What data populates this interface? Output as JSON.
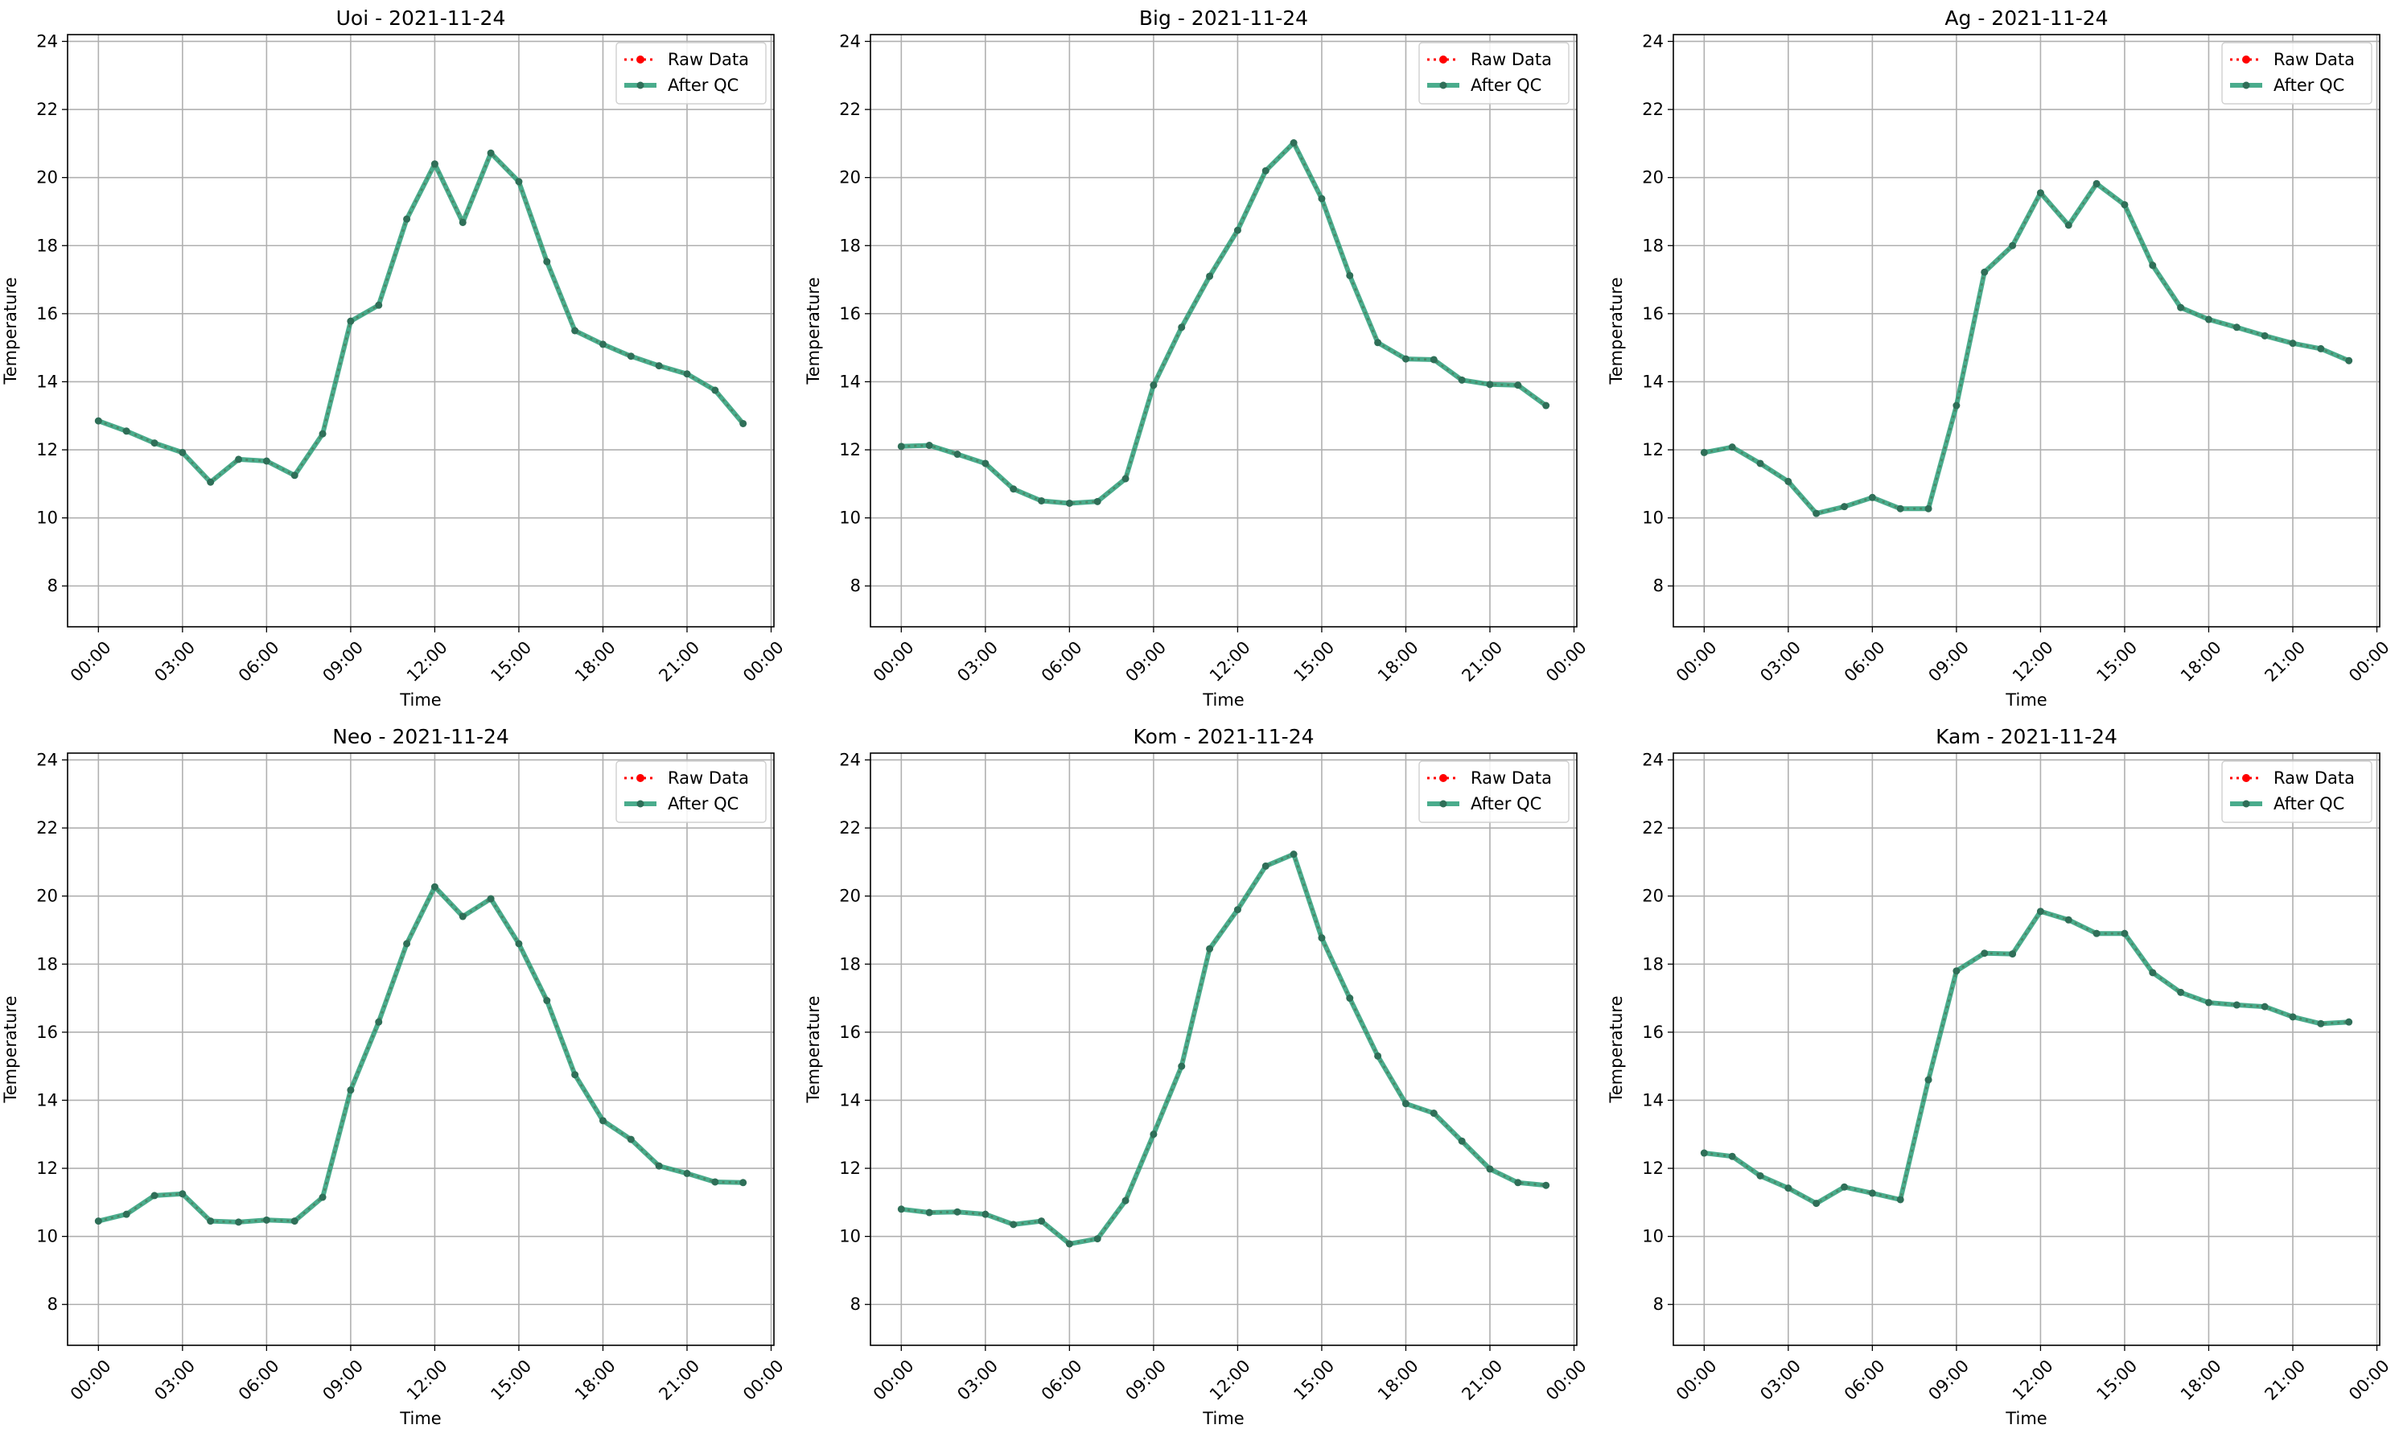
{
  "legend": {
    "raw_label": "Raw Data",
    "qc_label": "After QC"
  },
  "colors": {
    "raw": "#ff0000",
    "qc": "#2a9d78",
    "grid": "#b0b0b0"
  },
  "chart_data": [
    {
      "type": "line",
      "title": "Uoi - 2021-11-24",
      "xlabel": "Time",
      "ylabel": "Temperature",
      "ylim": [
        6.8,
        24.2
      ],
      "xlim_hours": [
        -1.1,
        24.1
      ],
      "x_tick_labels": [
        "00:00",
        "03:00",
        "06:00",
        "09:00",
        "12:00",
        "15:00",
        "18:00",
        "21:00",
        "00:00"
      ],
      "y_ticks": [
        8,
        10,
        12,
        14,
        16,
        18,
        20,
        22,
        24
      ],
      "grid": true,
      "legend_position": "top-right",
      "x": [
        "00:00",
        "01:00",
        "02:00",
        "03:00",
        "04:00",
        "05:00",
        "06:00",
        "07:00",
        "08:00",
        "09:00",
        "10:00",
        "11:00",
        "12:00",
        "13:00",
        "14:00",
        "15:00",
        "16:00",
        "17:00",
        "18:00",
        "19:00",
        "20:00",
        "21:00",
        "22:00",
        "23:00"
      ],
      "series": [
        {
          "name": "Raw Data",
          "values": [
            12.85,
            12.55,
            12.2,
            11.92,
            11.05,
            11.72,
            11.67,
            11.25,
            12.47,
            15.78,
            16.25,
            18.78,
            20.4,
            18.68,
            20.72,
            19.88,
            17.53,
            15.5,
            15.1,
            14.75,
            14.47,
            14.23,
            13.75,
            12.77
          ]
        },
        {
          "name": "After QC",
          "values": [
            12.85,
            12.55,
            12.2,
            11.92,
            11.05,
            11.72,
            11.67,
            11.25,
            12.47,
            15.78,
            16.25,
            18.78,
            20.4,
            18.68,
            20.72,
            19.88,
            17.53,
            15.5,
            15.1,
            14.75,
            14.47,
            14.23,
            13.75,
            12.77
          ]
        }
      ]
    },
    {
      "type": "line",
      "title": "Big - 2021-11-24",
      "xlabel": "Time",
      "ylabel": "Temperature",
      "ylim": [
        6.8,
        24.2
      ],
      "xlim_hours": [
        -1.1,
        24.1
      ],
      "x_tick_labels": [
        "00:00",
        "03:00",
        "06:00",
        "09:00",
        "12:00",
        "15:00",
        "18:00",
        "21:00",
        "00:00"
      ],
      "y_ticks": [
        8,
        10,
        12,
        14,
        16,
        18,
        20,
        22,
        24
      ],
      "grid": true,
      "legend_position": "top-right",
      "x": [
        "00:00",
        "01:00",
        "02:00",
        "03:00",
        "04:00",
        "05:00",
        "06:00",
        "07:00",
        "08:00",
        "09:00",
        "10:00",
        "11:00",
        "12:00",
        "13:00",
        "14:00",
        "15:00",
        "16:00",
        "17:00",
        "18:00",
        "19:00",
        "20:00",
        "21:00",
        "22:00",
        "23:00"
      ],
      "series": [
        {
          "name": "Raw Data",
          "values": [
            12.1,
            12.13,
            11.87,
            11.6,
            10.85,
            10.5,
            10.43,
            10.48,
            11.15,
            13.9,
            15.6,
            17.1,
            18.45,
            20.2,
            21.02,
            19.38,
            17.12,
            15.15,
            14.67,
            14.65,
            14.05,
            13.92,
            13.9,
            13.3
          ]
        },
        {
          "name": "After QC",
          "values": [
            12.1,
            12.13,
            11.87,
            11.6,
            10.85,
            10.5,
            10.43,
            10.48,
            11.15,
            13.9,
            15.6,
            17.1,
            18.45,
            20.2,
            21.02,
            19.38,
            17.12,
            15.15,
            14.67,
            14.65,
            14.05,
            13.92,
            13.9,
            13.3
          ]
        }
      ]
    },
    {
      "type": "line",
      "title": "Ag - 2021-11-24",
      "xlabel": "Time",
      "ylabel": "Temperature",
      "ylim": [
        6.8,
        24.2
      ],
      "xlim_hours": [
        -1.1,
        24.1
      ],
      "x_tick_labels": [
        "00:00",
        "03:00",
        "06:00",
        "09:00",
        "12:00",
        "15:00",
        "18:00",
        "21:00",
        "00:00"
      ],
      "y_ticks": [
        8,
        10,
        12,
        14,
        16,
        18,
        20,
        22,
        24
      ],
      "grid": true,
      "legend_position": "top-right",
      "x": [
        "00:00",
        "01:00",
        "02:00",
        "03:00",
        "04:00",
        "05:00",
        "06:00",
        "07:00",
        "08:00",
        "09:00",
        "10:00",
        "11:00",
        "12:00",
        "13:00",
        "14:00",
        "15:00",
        "16:00",
        "17:00",
        "18:00",
        "19:00",
        "20:00",
        "21:00",
        "22:00",
        "23:00"
      ],
      "series": [
        {
          "name": "Raw Data",
          "values": [
            11.92,
            12.08,
            11.6,
            11.07,
            10.13,
            10.33,
            10.6,
            10.27,
            10.27,
            13.3,
            17.22,
            18.0,
            19.55,
            18.6,
            19.82,
            19.2,
            17.42,
            16.18,
            15.83,
            15.6,
            15.35,
            15.13,
            14.97,
            14.62
          ]
        },
        {
          "name": "After QC",
          "values": [
            11.92,
            12.08,
            11.6,
            11.07,
            10.13,
            10.33,
            10.6,
            10.27,
            10.27,
            13.3,
            17.22,
            18.0,
            19.55,
            18.6,
            19.82,
            19.2,
            17.42,
            16.18,
            15.83,
            15.6,
            15.35,
            15.13,
            14.97,
            14.62
          ]
        }
      ]
    },
    {
      "type": "line",
      "title": "Neo - 2021-11-24",
      "xlabel": "Time",
      "ylabel": "Temperature",
      "ylim": [
        6.8,
        24.2
      ],
      "xlim_hours": [
        -1.1,
        24.1
      ],
      "x_tick_labels": [
        "00:00",
        "03:00",
        "06:00",
        "09:00",
        "12:00",
        "15:00",
        "18:00",
        "21:00",
        "00:00"
      ],
      "y_ticks": [
        8,
        10,
        12,
        14,
        16,
        18,
        20,
        22,
        24
      ],
      "grid": true,
      "legend_position": "top-right",
      "x": [
        "00:00",
        "01:00",
        "02:00",
        "03:00",
        "04:00",
        "05:00",
        "06:00",
        "07:00",
        "08:00",
        "09:00",
        "10:00",
        "11:00",
        "12:00",
        "13:00",
        "14:00",
        "15:00",
        "16:00",
        "17:00",
        "18:00",
        "19:00",
        "20:00",
        "21:00",
        "22:00",
        "23:00"
      ],
      "series": [
        {
          "name": "Raw Data",
          "values": [
            10.45,
            10.65,
            11.2,
            11.25,
            10.45,
            10.42,
            10.48,
            10.45,
            11.15,
            14.3,
            16.3,
            18.6,
            20.27,
            19.4,
            19.92,
            18.6,
            16.93,
            14.75,
            13.4,
            12.85,
            12.07,
            11.85,
            11.6,
            11.58
          ]
        },
        {
          "name": "After QC",
          "values": [
            10.45,
            10.65,
            11.2,
            11.25,
            10.45,
            10.42,
            10.48,
            10.45,
            11.15,
            14.3,
            16.3,
            18.6,
            20.27,
            19.4,
            19.92,
            18.6,
            16.93,
            14.75,
            13.4,
            12.85,
            12.07,
            11.85,
            11.6,
            11.58
          ]
        }
      ]
    },
    {
      "type": "line",
      "title": "Kom - 2021-11-24",
      "xlabel": "Time",
      "ylabel": "Temperature",
      "ylim": [
        6.8,
        24.2
      ],
      "xlim_hours": [
        -1.1,
        24.1
      ],
      "x_tick_labels": [
        "00:00",
        "03:00",
        "06:00",
        "09:00",
        "12:00",
        "15:00",
        "18:00",
        "21:00",
        "00:00"
      ],
      "y_ticks": [
        8,
        10,
        12,
        14,
        16,
        18,
        20,
        22,
        24
      ],
      "grid": true,
      "legend_position": "top-right",
      "x": [
        "00:00",
        "01:00",
        "02:00",
        "03:00",
        "04:00",
        "05:00",
        "06:00",
        "07:00",
        "08:00",
        "09:00",
        "10:00",
        "11:00",
        "12:00",
        "13:00",
        "14:00",
        "15:00",
        "16:00",
        "17:00",
        "18:00",
        "19:00",
        "20:00",
        "21:00",
        "22:00",
        "23:00"
      ],
      "series": [
        {
          "name": "Raw Data",
          "values": [
            10.8,
            10.7,
            10.72,
            10.65,
            10.35,
            10.45,
            9.78,
            9.93,
            11.05,
            13.0,
            15.0,
            18.45,
            19.6,
            20.88,
            21.23,
            18.77,
            17.0,
            15.3,
            13.9,
            13.62,
            12.8,
            11.98,
            11.58,
            11.5
          ]
        },
        {
          "name": "After QC",
          "values": [
            10.8,
            10.7,
            10.72,
            10.65,
            10.35,
            10.45,
            9.78,
            9.93,
            11.05,
            13.0,
            15.0,
            18.45,
            19.6,
            20.88,
            21.23,
            18.77,
            17.0,
            15.3,
            13.9,
            13.62,
            12.8,
            11.98,
            11.58,
            11.5
          ]
        }
      ]
    },
    {
      "type": "line",
      "title": "Kam - 2021-11-24",
      "xlabel": "Time",
      "ylabel": "Temperature",
      "ylim": [
        6.8,
        24.2
      ],
      "xlim_hours": [
        -1.1,
        24.1
      ],
      "x_tick_labels": [
        "00:00",
        "03:00",
        "06:00",
        "09:00",
        "12:00",
        "15:00",
        "18:00",
        "21:00",
        "00:00"
      ],
      "y_ticks": [
        8,
        10,
        12,
        14,
        16,
        18,
        20,
        22,
        24
      ],
      "grid": true,
      "legend_position": "top-right",
      "x": [
        "00:00",
        "01:00",
        "02:00",
        "03:00",
        "04:00",
        "05:00",
        "06:00",
        "07:00",
        "08:00",
        "09:00",
        "10:00",
        "11:00",
        "12:00",
        "13:00",
        "14:00",
        "15:00",
        "16:00",
        "17:00",
        "18:00",
        "19:00",
        "20:00",
        "21:00",
        "22:00",
        "23:00"
      ],
      "series": [
        {
          "name": "Raw Data",
          "values": [
            12.45,
            12.35,
            11.78,
            11.42,
            10.97,
            11.45,
            11.27,
            11.08,
            14.6,
            17.8,
            18.32,
            18.3,
            19.55,
            19.3,
            18.9,
            18.9,
            17.75,
            17.17,
            16.87,
            16.8,
            16.75,
            16.45,
            16.25,
            16.3
          ]
        },
        {
          "name": "After QC",
          "values": [
            12.45,
            12.35,
            11.78,
            11.42,
            10.97,
            11.45,
            11.27,
            11.08,
            14.6,
            17.8,
            18.32,
            18.3,
            19.55,
            19.3,
            18.9,
            18.9,
            17.75,
            17.17,
            16.87,
            16.8,
            16.75,
            16.45,
            16.25,
            16.3
          ]
        }
      ]
    }
  ]
}
